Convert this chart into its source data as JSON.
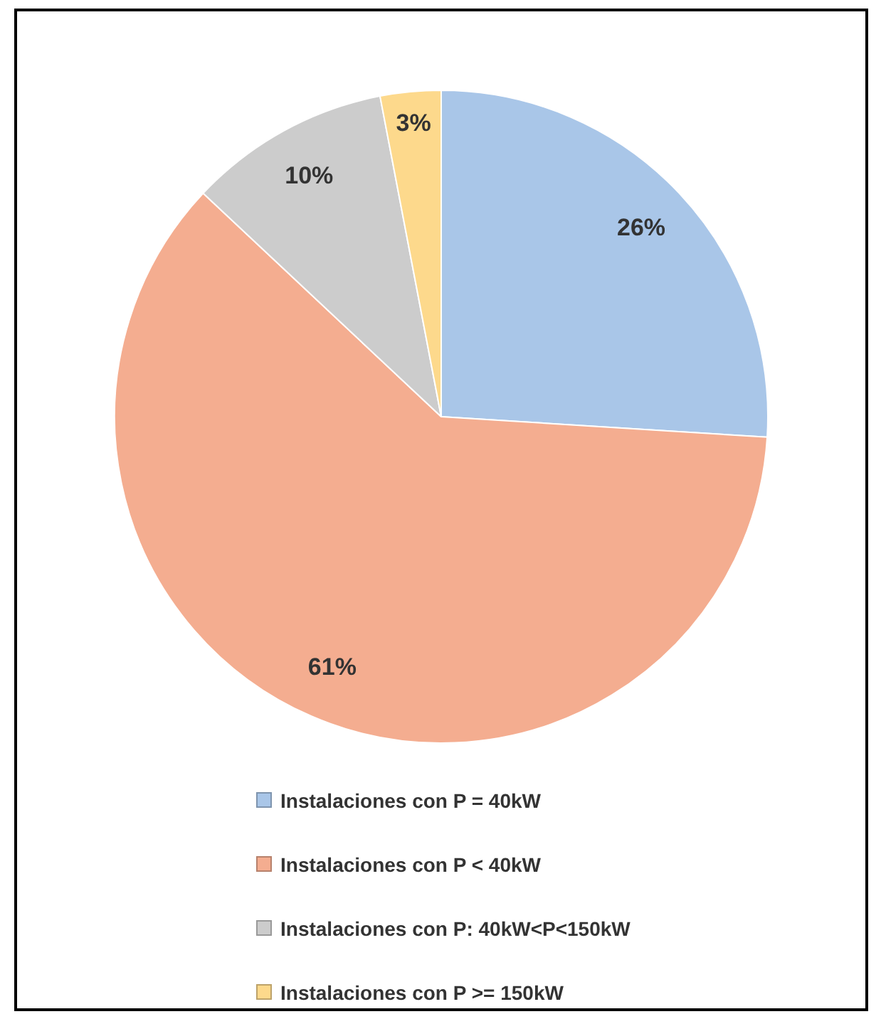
{
  "chart_data": {
    "type": "pie",
    "categories": [
      "Instalaciones con P = 40kW",
      "Instalaciones con P < 40kW",
      "Instalaciones con P: 40kW<P<150kW",
      "Instalaciones con P >= 150kW"
    ],
    "values": [
      26,
      61,
      10,
      3
    ],
    "colors": [
      "#a9c6e8",
      "#f4ad90",
      "#cccccc",
      "#fdd98c"
    ],
    "value_labels": [
      "26%",
      "61%",
      "10%",
      "3%"
    ],
    "legend": "bottom"
  }
}
